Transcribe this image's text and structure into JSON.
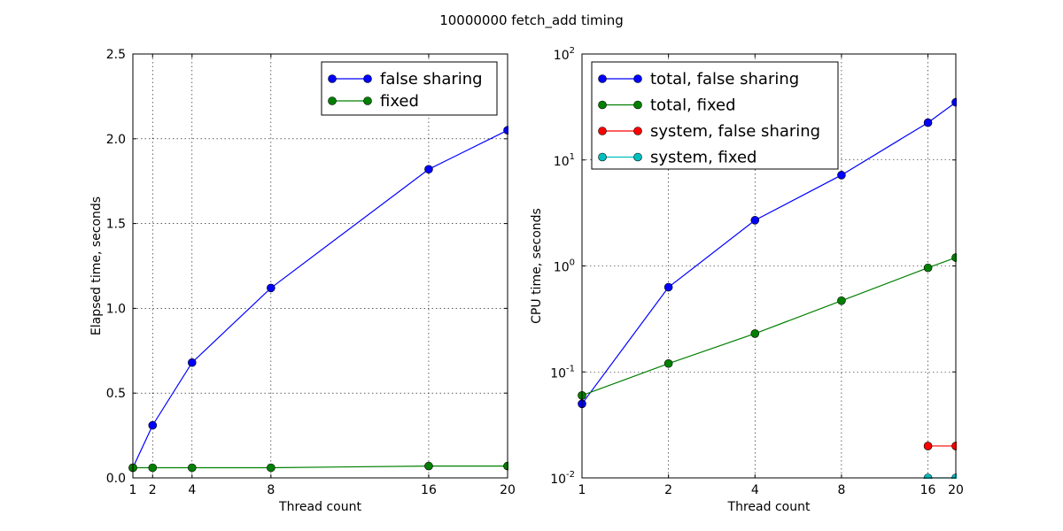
{
  "figure": {
    "title": "10000000 fetch_add timing"
  },
  "chart_data": [
    {
      "type": "line",
      "xlabel": "Thread count",
      "ylabel": "Elapsed time, seconds",
      "x": [
        1,
        2,
        4,
        8,
        16,
        20
      ],
      "xlim": [
        1,
        20
      ],
      "ylim": [
        0,
        2.5
      ],
      "xscale": "linear",
      "yscale": "linear",
      "xticks": [
        1,
        2,
        4,
        8,
        16,
        20
      ],
      "xtick_labels": [
        "1",
        "2",
        "4",
        "8",
        "16",
        "20"
      ],
      "yticks": [
        0,
        0.5,
        1.0,
        1.5,
        2.0,
        2.5
      ],
      "ytick_labels": [
        "0.0",
        "0.5",
        "1.0",
        "1.5",
        "2.0",
        "2.5"
      ],
      "grid": true,
      "legend_position": "top-right",
      "series": [
        {
          "name": "false sharing",
          "color": "#0000ff",
          "values": [
            0.06,
            0.31,
            0.68,
            1.12,
            1.82,
            2.05
          ]
        },
        {
          "name": "fixed",
          "color": "#008000",
          "values": [
            0.06,
            0.06,
            0.06,
            0.06,
            0.07,
            0.07
          ]
        }
      ]
    },
    {
      "type": "line",
      "xlabel": "Thread count",
      "ylabel": "CPU time, seconds",
      "x": [
        1,
        2,
        4,
        8,
        16,
        20
      ],
      "xlim": [
        1,
        20
      ],
      "ylim": [
        0.01,
        100
      ],
      "xscale": "log",
      "yscale": "log",
      "xticks": [
        1,
        2,
        4,
        8,
        16,
        20
      ],
      "xtick_labels": [
        "1",
        "2",
        "4",
        "8",
        "16",
        "20"
      ],
      "yticks": [
        0.01,
        0.1,
        1,
        10,
        100
      ],
      "ytick_labels": [
        {
          "base": "10",
          "exp": "-2"
        },
        {
          "base": "10",
          "exp": "-1"
        },
        {
          "base": "10",
          "exp": "0"
        },
        {
          "base": "10",
          "exp": "1"
        },
        {
          "base": "10",
          "exp": "2"
        }
      ],
      "grid": true,
      "legend_position": "top-left",
      "series": [
        {
          "name": "total, false sharing",
          "color": "#0000ff",
          "x": [
            1,
            2,
            4,
            8,
            16,
            20
          ],
          "values": [
            0.05,
            0.63,
            2.7,
            7.2,
            22.5,
            35.0
          ]
        },
        {
          "name": "total, fixed",
          "color": "#008000",
          "x": [
            1,
            2,
            4,
            8,
            16,
            20
          ],
          "values": [
            0.06,
            0.12,
            0.23,
            0.47,
            0.96,
            1.2
          ]
        },
        {
          "name": "system, false sharing",
          "color": "#ff0000",
          "x": [
            16,
            20
          ],
          "values": [
            0.02,
            0.02
          ]
        },
        {
          "name": "system, fixed",
          "color": "#00bfbf",
          "x": [
            16,
            20
          ],
          "values": [
            0.01,
            0.01
          ]
        }
      ]
    }
  ]
}
